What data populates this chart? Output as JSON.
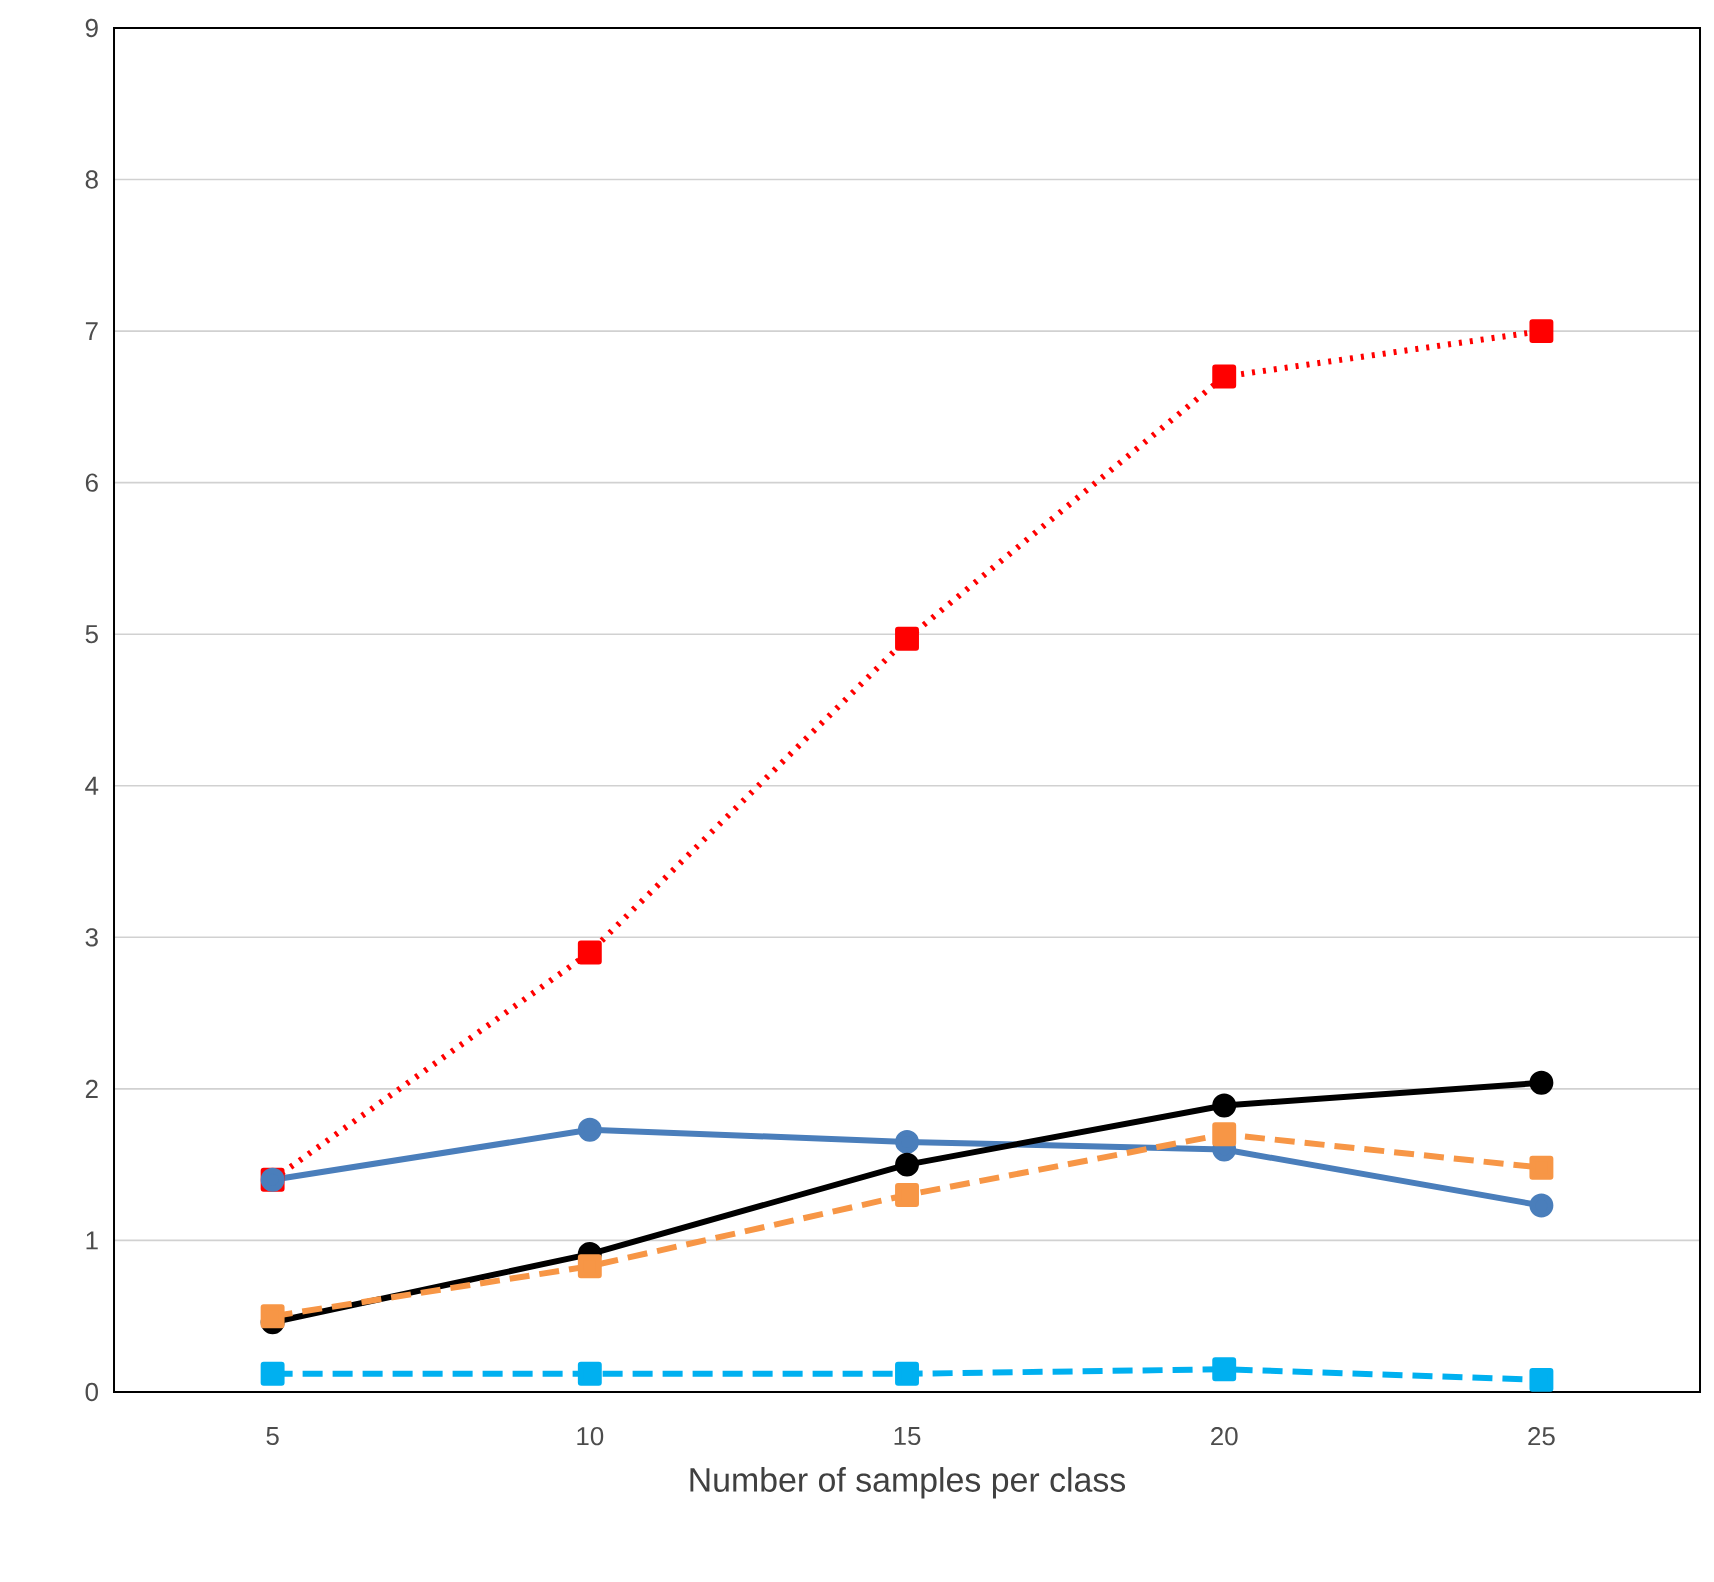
{
  "chart_data": {
    "type": "line",
    "xlabel": "Number of samples per class",
    "categories": [
      "5",
      "10",
      "15",
      "20",
      "25"
    ],
    "ylim": [
      0,
      9
    ],
    "yticks": [
      0,
      1,
      2,
      3,
      4,
      5,
      6,
      7,
      8,
      9
    ],
    "grid": "y",
    "series": [
      {
        "color": "#ff0000",
        "values": [
          1.4,
          2.9,
          4.97,
          6.7,
          7.0
        ],
        "marker": "square",
        "line_style": "dotted"
      },
      {
        "color": "#4a7ebb",
        "values": [
          1.4,
          1.73,
          1.65,
          1.6,
          1.23
        ],
        "marker": "circle",
        "line_style": "solid"
      },
      {
        "color": "#000000",
        "values": [
          0.46,
          0.91,
          1.5,
          1.89,
          2.04
        ],
        "marker": "circle",
        "line_style": "solid"
      },
      {
        "color": "#f79646",
        "values": [
          0.5,
          0.83,
          1.3,
          1.7,
          1.48
        ],
        "marker": "square",
        "line_style": "dashed"
      },
      {
        "color": "#00b0f0",
        "values": [
          0.12,
          0.12,
          0.12,
          0.15,
          0.08
        ],
        "marker": "square",
        "line_style": "dashed"
      }
    ]
  }
}
